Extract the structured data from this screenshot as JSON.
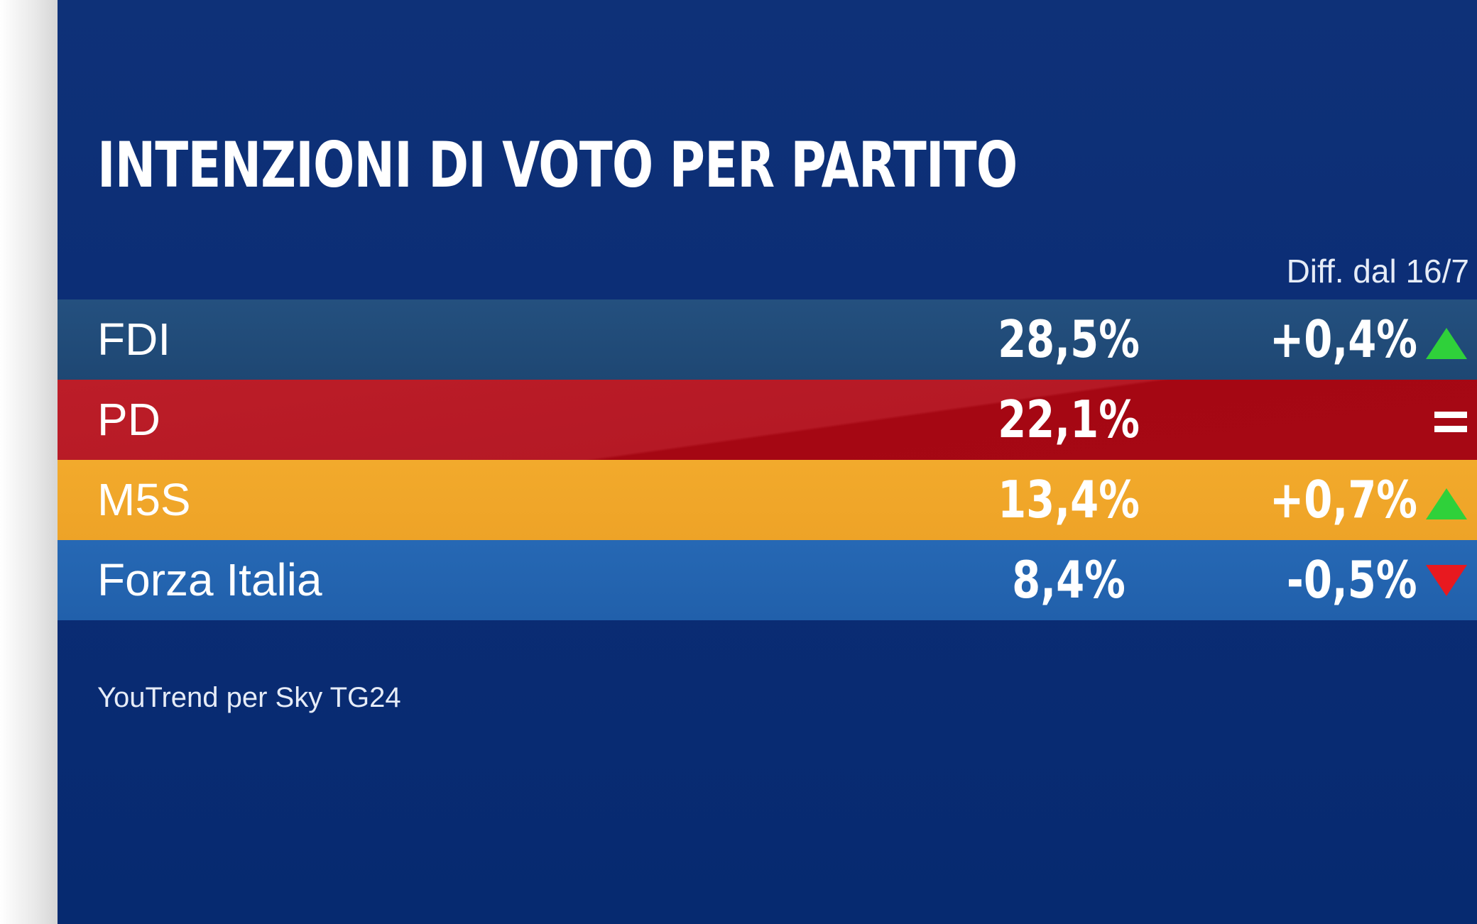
{
  "chart_data": {
    "type": "table",
    "title": "INTENZIONI DI VOTO PER PARTITO",
    "diff_header": "Diff. dal 16/7",
    "source": "YouTrend per Sky TG24",
    "rows": [
      {
        "party": "FDI",
        "value": "28,5%",
        "diff": "+0,4%",
        "trend": "up",
        "trend_icon": "triangle-up-icon",
        "color": "#24507f"
      },
      {
        "party": "PD",
        "value": "22,1%",
        "diff": "",
        "trend": "equal",
        "trend_icon": "equal-icon",
        "color": "#b51925"
      },
      {
        "party": "M5S",
        "value": "13,4%",
        "diff": "+0,7%",
        "trend": "up",
        "trend_icon": "triangle-up-icon",
        "color": "#f0a72a"
      },
      {
        "party": "Forza Italia",
        "value": "8,4%",
        "diff": "-0,5%",
        "trend": "down",
        "trend_icon": "triangle-down-icon",
        "color": "#2464b0"
      }
    ]
  },
  "colors": {
    "background": "#0c2e75",
    "up": "#2fd13a",
    "down": "#e8191f",
    "equal": "#ffffff"
  }
}
